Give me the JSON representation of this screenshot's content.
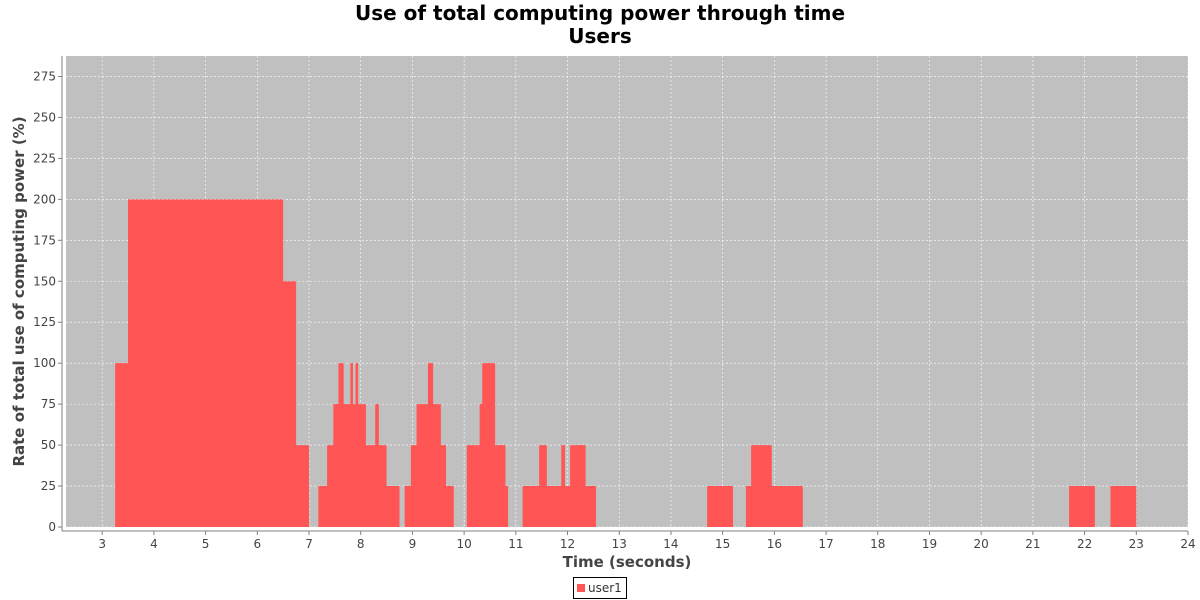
{
  "chart_data": {
    "type": "area",
    "title": "Use of total computing power through time",
    "subtitle": "Users",
    "xlabel": "Time (seconds)",
    "ylabel": "Rate of total use of computing power (%)",
    "xlim": [
      2.3,
      24.0
    ],
    "ylim": [
      0,
      287.5
    ],
    "xticks": [
      3,
      4,
      5,
      6,
      7,
      8,
      9,
      10,
      11,
      12,
      13,
      14,
      15,
      16,
      17,
      18,
      19,
      20,
      21,
      22,
      23,
      24
    ],
    "yticks": [
      0,
      25,
      50,
      75,
      100,
      125,
      150,
      175,
      200,
      225,
      250,
      275
    ],
    "grid": true,
    "step": true,
    "legend": "bottom-center",
    "series": [
      {
        "name": "user1",
        "color": "#ff5555",
        "x": [
          3.25,
          3.5,
          6.5,
          6.75,
          7.0,
          7.18,
          7.35,
          7.47,
          7.57,
          7.67,
          7.8,
          7.85,
          7.9,
          7.95,
          8.1,
          8.28,
          8.35,
          8.5,
          8.75,
          8.85,
          8.97,
          9.08,
          9.3,
          9.4,
          9.55,
          9.65,
          9.8,
          10.05,
          10.3,
          10.35,
          10.6,
          10.8,
          10.85,
          11.13,
          11.45,
          11.6,
          11.88,
          11.95,
          12.05,
          12.35,
          12.55,
          14.7,
          15.2,
          15.45,
          15.55,
          15.95,
          16.05,
          16.55,
          21.7,
          22.2,
          22.5,
          23.0
        ],
        "y": [
          100,
          200,
          150,
          50,
          0,
          25,
          50,
          75,
          100,
          75,
          100,
          75,
          100,
          75,
          50,
          75,
          50,
          25,
          0,
          25,
          50,
          75,
          100,
          75,
          50,
          25,
          0,
          50,
          75,
          100,
          50,
          25,
          0,
          25,
          50,
          25,
          50,
          25,
          50,
          25,
          0,
          25,
          0,
          25,
          50,
          25,
          25,
          0,
          25,
          0,
          25,
          0
        ]
      }
    ]
  },
  "colors": {
    "plot_background": "#c0c0c0",
    "gridline": "#ffffff",
    "series": "#ff5555",
    "axis": "#808080",
    "tick_label": "#444444"
  }
}
